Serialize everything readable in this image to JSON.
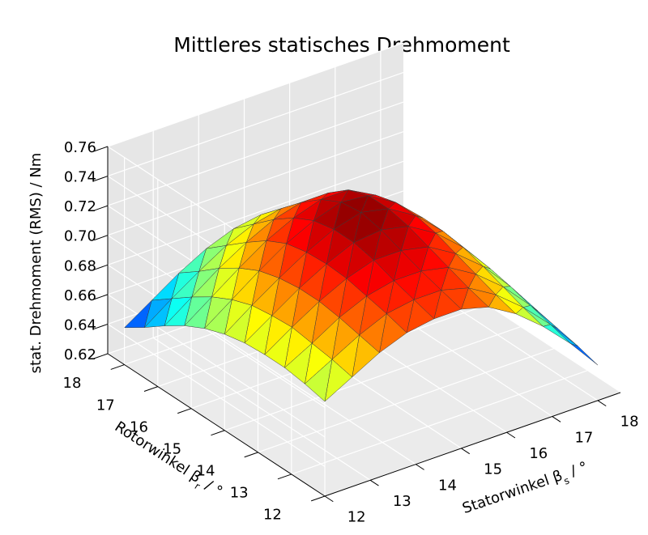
{
  "chart_data": {
    "type": "surface3d",
    "title": "Mittleres statisches Drehmoment",
    "xlabel": "Statorwinkel β",
    "xlabel_sub": "s",
    "xlabel_unit": " / °",
    "ylabel": "Rotorwinkel β",
    "ylabel_sub": "r",
    "ylabel_unit": " / °",
    "zlabel": "stat. Drehmoment (RMS) / Nm",
    "xlim": [
      12,
      18.5
    ],
    "ylim": [
      12,
      18.5
    ],
    "zlim": [
      0.62,
      0.76
    ],
    "x_ticks": [
      "12",
      "13",
      "14",
      "15",
      "16",
      "17",
      "18"
    ],
    "y_ticks": [
      "12",
      "13",
      "14",
      "15",
      "16",
      "17",
      "18"
    ],
    "z_ticks": [
      "0.62",
      "0.64",
      "0.66",
      "0.68",
      "0.70",
      "0.72",
      "0.74",
      "0.76"
    ],
    "colormap": "jet",
    "grid": true,
    "x": [
      12.0,
      12.6,
      13.2,
      13.8,
      14.4,
      15.0,
      15.6,
      16.2,
      16.8,
      17.4,
      18.0
    ],
    "y": [
      12.0,
      12.6,
      13.2,
      13.8,
      14.4,
      15.0,
      15.6,
      16.2,
      16.8,
      17.4,
      18.0
    ],
    "z": [
      [
        0.684,
        0.694,
        0.704,
        0.711,
        0.714,
        0.714,
        0.709,
        0.698,
        0.683,
        0.665,
        0.644
      ],
      [
        0.687,
        0.697,
        0.707,
        0.715,
        0.718,
        0.718,
        0.713,
        0.702,
        0.687,
        0.669,
        0.648
      ],
      [
        0.689,
        0.699,
        0.71,
        0.718,
        0.722,
        0.722,
        0.718,
        0.707,
        0.692,
        0.673,
        0.651
      ],
      [
        0.689,
        0.701,
        0.712,
        0.721,
        0.727,
        0.727,
        0.723,
        0.712,
        0.697,
        0.677,
        0.654
      ],
      [
        0.688,
        0.7,
        0.712,
        0.722,
        0.73,
        0.732,
        0.728,
        0.717,
        0.701,
        0.68,
        0.656
      ],
      [
        0.685,
        0.698,
        0.71,
        0.721,
        0.73,
        0.735,
        0.731,
        0.72,
        0.703,
        0.682,
        0.657
      ],
      [
        0.68,
        0.693,
        0.706,
        0.718,
        0.727,
        0.733,
        0.731,
        0.72,
        0.703,
        0.681,
        0.655
      ],
      [
        0.673,
        0.686,
        0.699,
        0.711,
        0.72,
        0.726,
        0.726,
        0.716,
        0.699,
        0.677,
        0.651
      ],
      [
        0.664,
        0.677,
        0.69,
        0.701,
        0.71,
        0.715,
        0.715,
        0.707,
        0.691,
        0.67,
        0.645
      ],
      [
        0.654,
        0.667,
        0.679,
        0.69,
        0.698,
        0.702,
        0.701,
        0.694,
        0.68,
        0.66,
        0.637
      ],
      [
        0.645,
        0.657,
        0.669,
        0.679,
        0.686,
        0.689,
        0.688,
        0.681,
        0.668,
        0.65,
        0.628
      ]
    ]
  }
}
